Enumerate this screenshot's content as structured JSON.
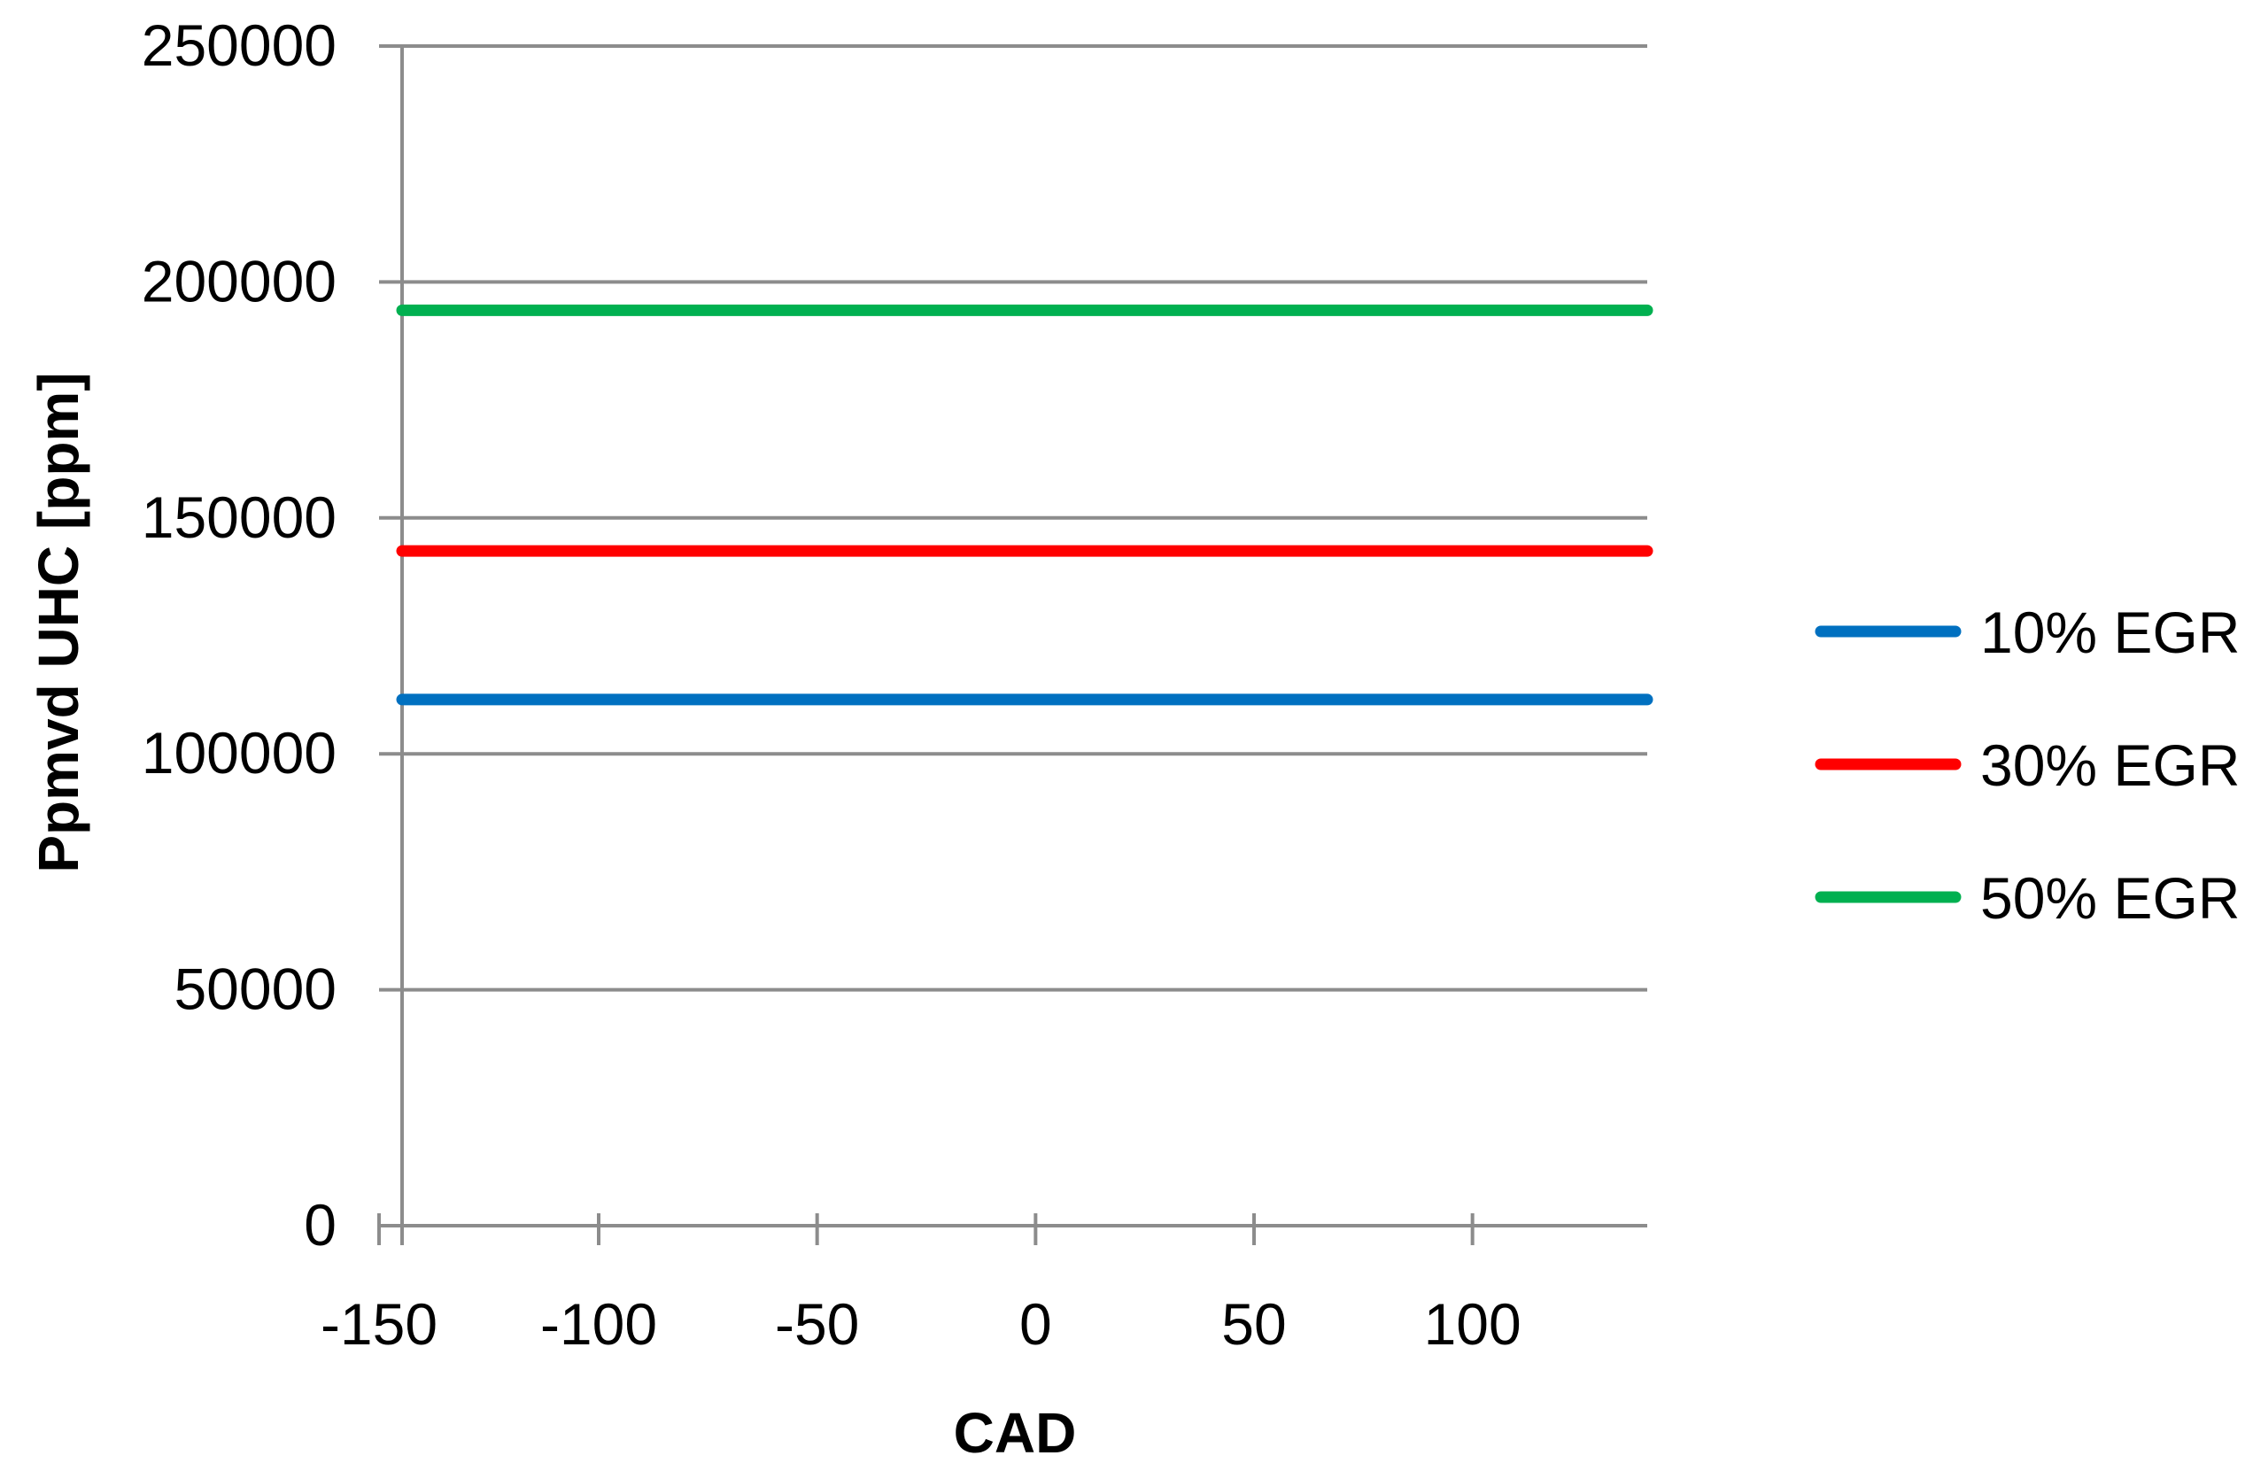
{
  "chart_data": {
    "type": "line",
    "title": "",
    "xlabel": "CAD",
    "ylabel": "Ppmvd UHC [ppm]",
    "xlim": [
      -145,
      140
    ],
    "ylim": [
      0,
      250000
    ],
    "x_ticks": [
      -150,
      -100,
      -50,
      0,
      50,
      100
    ],
    "y_ticks": [
      0,
      50000,
      100000,
      150000,
      200000,
      250000
    ],
    "grid": "horizontal",
    "legend_position": "right",
    "series": [
      {
        "name": "10% EGR",
        "color": "#0070C0",
        "x": [
          -145,
          140
        ],
        "y": [
          111500,
          111500
        ]
      },
      {
        "name": "30% EGR",
        "color": "#FF0000",
        "x": [
          -145,
          140
        ],
        "y": [
          143000,
          143000
        ]
      },
      {
        "name": "50% EGR",
        "color": "#00B050",
        "x": [
          -145,
          140
        ],
        "y": [
          194000,
          194000
        ]
      }
    ]
  }
}
